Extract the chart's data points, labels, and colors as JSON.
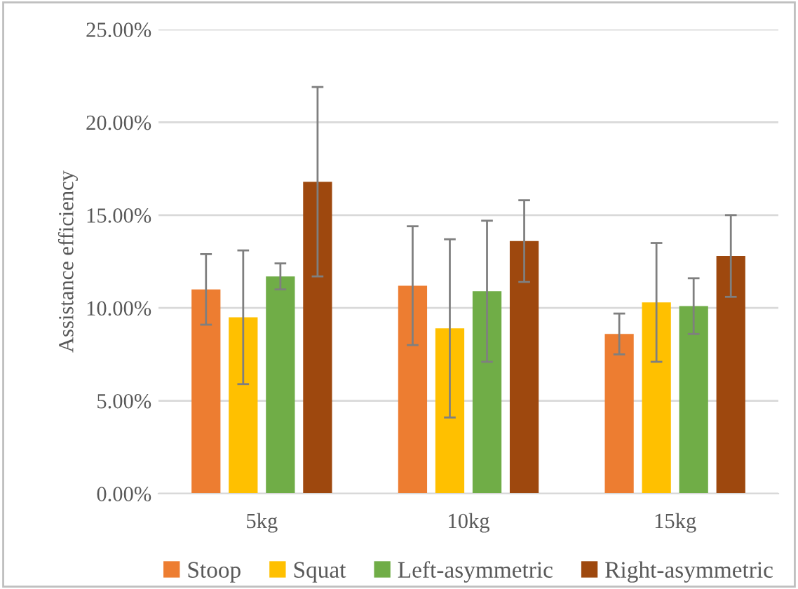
{
  "chart_data": {
    "type": "bar",
    "ylabel": "Assistance efficiency",
    "categories": [
      "5kg",
      "10kg",
      "15kg"
    ],
    "series": [
      {
        "name": "Stoop",
        "color": "#ed7d31",
        "values": [
          11.0,
          11.2,
          8.6
        ],
        "errors": [
          1.9,
          3.2,
          1.1
        ]
      },
      {
        "name": "Squat",
        "color": "#ffc000",
        "values": [
          9.5,
          8.9,
          10.3
        ],
        "errors": [
          3.6,
          4.8,
          3.2
        ]
      },
      {
        "name": "Left-asymmetric",
        "color": "#70ad47",
        "values": [
          11.7,
          10.9,
          10.1
        ],
        "errors": [
          0.7,
          3.8,
          1.5
        ]
      },
      {
        "name": "Right-asymmetric",
        "color": "#9e480e",
        "values": [
          16.8,
          13.6,
          12.8
        ],
        "errors": [
          5.1,
          2.2,
          2.2
        ]
      }
    ],
    "ylim": [
      0,
      25
    ],
    "yticks": [
      {
        "value": 0,
        "label": "0.00%"
      },
      {
        "value": 5,
        "label": "5.00%"
      },
      {
        "value": 10,
        "label": "10.00%"
      },
      {
        "value": 15,
        "label": "15.00%"
      },
      {
        "value": 20,
        "label": "20.00%"
      },
      {
        "value": 25,
        "label": "25.00%"
      }
    ],
    "grid": "y",
    "legend": "bottom"
  }
}
